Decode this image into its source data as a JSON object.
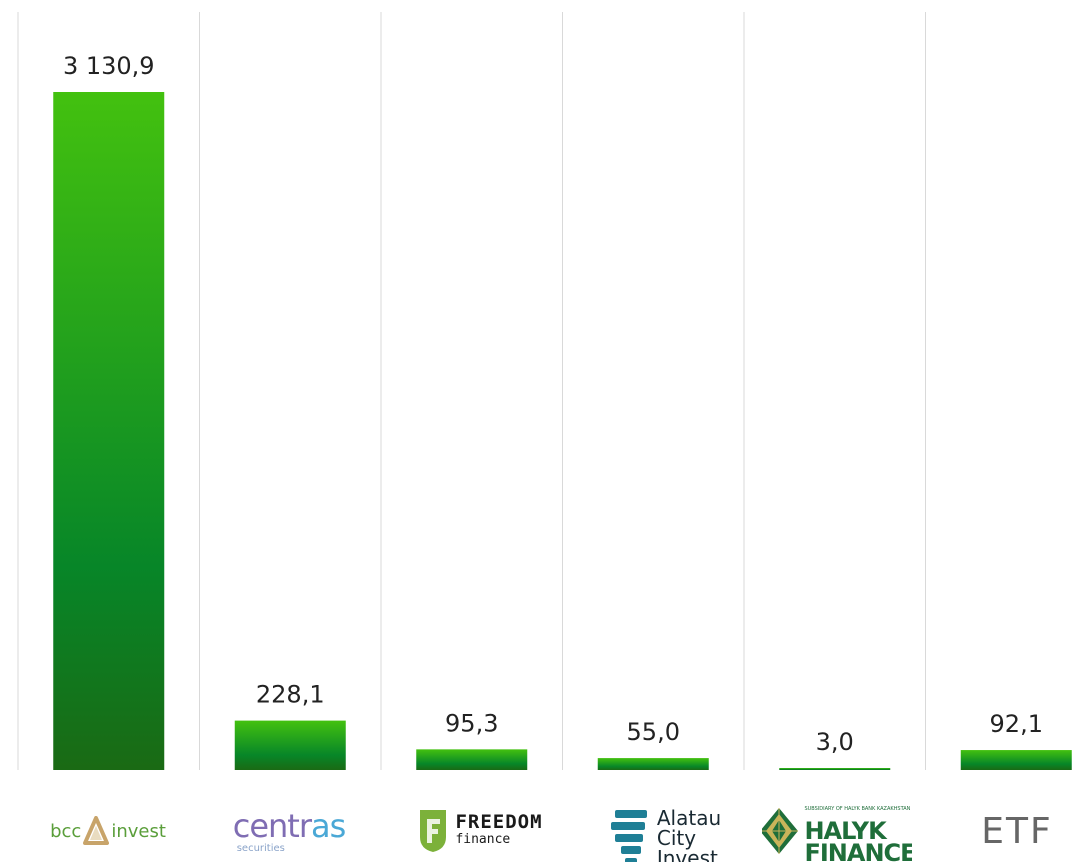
{
  "chart_data": {
    "type": "bar",
    "categories": [
      "bcc invest",
      "centras securities",
      "FREEDOM finance",
      "Alatau City Invest",
      "HALYK FINANCE",
      "ETF"
    ],
    "values": [
      3130.9,
      228.1,
      95.3,
      55.0,
      3.0,
      92.1
    ],
    "value_labels": [
      "3 130,9",
      "228,1",
      "95,3",
      "55,0",
      "3,0",
      "92,1"
    ],
    "title": "",
    "xlabel": "",
    "ylabel": "",
    "ylim": [
      0,
      3130.9
    ],
    "grid": "vertical separators between categories",
    "legend": "none",
    "colors": {
      "bar_top": "#43c10f",
      "bar_mid": "#078628",
      "bar_bottom": "#1a6a14",
      "separator": "#d9d9d9",
      "label": "#222222"
    }
  },
  "logos": {
    "bcc": {
      "left": "bcc",
      "right": "invest"
    },
    "centras": {
      "head": "centr",
      "tail": "as",
      "sub": "securities"
    },
    "freedom": {
      "line1": "FREEDOM",
      "line2": "finance"
    },
    "alatau": {
      "line1": "Alatau",
      "line2": "City",
      "line3": "Invest"
    },
    "halyk": {
      "tiny": "SUBSIDIARY OF HALYK BANK KAZAKHSTAN",
      "line1": "HALYK",
      "line2": "FINANCE"
    },
    "etf": {
      "text": "ETF"
    }
  }
}
